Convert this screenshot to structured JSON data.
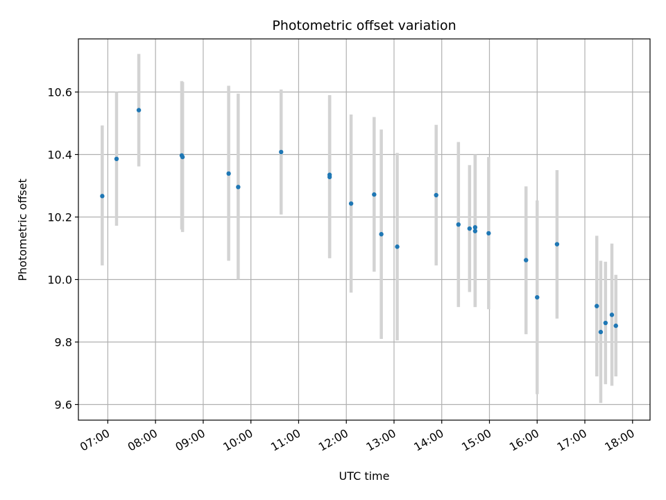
{
  "chart_data": {
    "type": "scatter",
    "title": "Photometric offset variation",
    "xlabel": "UTC time",
    "ylabel": "Photometric offset",
    "x_ticks": [
      "07:00",
      "08:00",
      "09:00",
      "10:00",
      "11:00",
      "12:00",
      "13:00",
      "14:00",
      "15:00",
      "16:00",
      "17:00",
      "18:00"
    ],
    "y_ticks": [
      "9.6",
      "9.8",
      "10.0",
      "10.2",
      "10.4",
      "10.6"
    ],
    "xlim": [
      "06:23",
      "18:22"
    ],
    "ylim": [
      9.55,
      10.77
    ],
    "grid": true,
    "colors": {
      "point": "#1f77b4",
      "errorbar": "#d3d3d3"
    },
    "points": [
      {
        "x": "06:53",
        "y": 10.267,
        "ylow": 10.045,
        "yhigh": 10.493
      },
      {
        "x": "07:11",
        "y": 10.386,
        "ylow": 10.172,
        "yhigh": 10.6
      },
      {
        "x": "07:39",
        "y": 10.542,
        "ylow": 10.362,
        "yhigh": 10.722
      },
      {
        "x": "08:33",
        "y": 10.397,
        "ylow": 10.16,
        "yhigh": 10.635
      },
      {
        "x": "08:34",
        "y": 10.392,
        "ylow": 10.152,
        "yhigh": 10.632
      },
      {
        "x": "09:32",
        "y": 10.339,
        "ylow": 10.06,
        "yhigh": 10.62
      },
      {
        "x": "09:44",
        "y": 10.296,
        "ylow": 10.0,
        "yhigh": 10.595
      },
      {
        "x": "10:38",
        "y": 10.408,
        "ylow": 10.208,
        "yhigh": 10.608
      },
      {
        "x": "11:39",
        "y": 10.335,
        "ylow": 10.07,
        "yhigh": 10.59
      },
      {
        "x": "11:39",
        "y": 10.328,
        "ylow": 10.068,
        "yhigh": 10.588
      },
      {
        "x": "12:06",
        "y": 10.243,
        "ylow": 9.958,
        "yhigh": 10.528
      },
      {
        "x": "12:35",
        "y": 10.272,
        "ylow": 10.025,
        "yhigh": 10.52
      },
      {
        "x": "12:44",
        "y": 10.145,
        "ylow": 9.81,
        "yhigh": 10.48
      },
      {
        "x": "13:04",
        "y": 10.105,
        "ylow": 9.805,
        "yhigh": 10.405
      },
      {
        "x": "13:53",
        "y": 10.27,
        "ylow": 10.045,
        "yhigh": 10.495
      },
      {
        "x": "14:21",
        "y": 10.176,
        "ylow": 9.912,
        "yhigh": 10.44
      },
      {
        "x": "14:35",
        "y": 10.163,
        "ylow": 9.96,
        "yhigh": 10.366
      },
      {
        "x": "14:42",
        "y": 10.167,
        "ylow": 9.912,
        "yhigh": 10.4
      },
      {
        "x": "14:42",
        "y": 10.155,
        "ylow": 9.912,
        "yhigh": 10.4
      },
      {
        "x": "14:59",
        "y": 10.148,
        "ylow": 9.905,
        "yhigh": 10.392
      },
      {
        "x": "15:46",
        "y": 10.062,
        "ylow": 9.825,
        "yhigh": 10.298
      },
      {
        "x": "16:00",
        "y": 9.943,
        "ylow": 9.633,
        "yhigh": 10.253
      },
      {
        "x": "16:25",
        "y": 10.113,
        "ylow": 9.875,
        "yhigh": 10.35
      },
      {
        "x": "17:15",
        "y": 9.915,
        "ylow": 9.69,
        "yhigh": 10.14
      },
      {
        "x": "17:20",
        "y": 9.832,
        "ylow": 9.605,
        "yhigh": 10.06
      },
      {
        "x": "17:26",
        "y": 9.861,
        "ylow": 9.665,
        "yhigh": 10.057
      },
      {
        "x": "17:34",
        "y": 9.887,
        "ylow": 9.66,
        "yhigh": 10.115
      },
      {
        "x": "17:39",
        "y": 9.852,
        "ylow": 9.69,
        "yhigh": 10.015
      }
    ]
  }
}
